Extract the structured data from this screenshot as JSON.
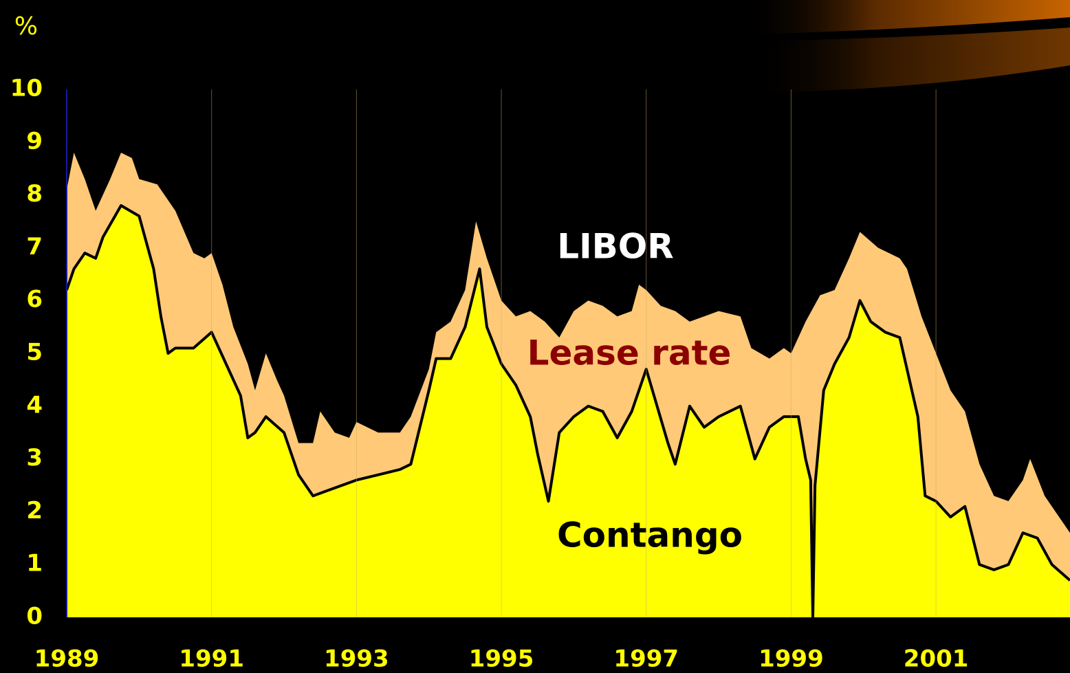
{
  "chart_data": {
    "type": "area",
    "y_unit_label": "%",
    "xlim": [
      1989,
      2002.85
    ],
    "xticks": [
      1989,
      1991,
      1993,
      1995,
      1997,
      1999,
      2001
    ],
    "ylim": [
      0,
      10
    ],
    "yticks": [
      0,
      1,
      2,
      3,
      4,
      5,
      6,
      7,
      8,
      9,
      10
    ],
    "grid": "x",
    "series": [
      {
        "name": "LIBOR",
        "color": "#ffc978",
        "label_color": "#ffffff",
        "x": [
          1989.0,
          1989.1,
          1989.25,
          1989.4,
          1989.6,
          1989.75,
          1989.9,
          1990.0,
          1990.25,
          1990.5,
          1990.75,
          1990.9,
          1991.0,
          1991.15,
          1991.3,
          1991.5,
          1991.6,
          1991.75,
          1991.9,
          1992.0,
          1992.2,
          1992.4,
          1992.5,
          1992.7,
          1992.9,
          1993.0,
          1993.3,
          1993.6,
          1993.75,
          1994.0,
          1994.1,
          1994.3,
          1994.5,
          1994.65,
          1994.8,
          1995.0,
          1995.2,
          1995.4,
          1995.6,
          1995.8,
          1996.0,
          1996.2,
          1996.4,
          1996.6,
          1996.8,
          1996.9,
          1997.0,
          1997.2,
          1997.4,
          1997.6,
          1997.8,
          1998.0,
          1998.3,
          1998.45,
          1998.7,
          1998.9,
          1999.0,
          1999.2,
          1999.4,
          1999.6,
          1999.8,
          1999.95,
          2000.2,
          2000.5,
          2000.6,
          2000.8,
          2001.0,
          2001.2,
          2001.4,
          2001.6,
          2001.8,
          2002.0,
          2002.2,
          2002.3,
          2002.5,
          2002.7,
          2002.85
        ],
        "values": [
          8.1,
          8.8,
          8.3,
          7.7,
          8.3,
          8.8,
          8.7,
          8.3,
          8.2,
          7.7,
          6.9,
          6.8,
          6.9,
          6.3,
          5.5,
          4.8,
          4.3,
          5.0,
          4.5,
          4.2,
          3.3,
          3.3,
          3.9,
          3.5,
          3.4,
          3.7,
          3.5,
          3.5,
          3.8,
          4.7,
          5.4,
          5.6,
          6.2,
          7.5,
          6.8,
          6.0,
          5.7,
          5.8,
          5.6,
          5.3,
          5.8,
          6.0,
          5.9,
          5.7,
          5.8,
          6.3,
          6.2,
          5.9,
          5.8,
          5.6,
          5.7,
          5.8,
          5.7,
          5.1,
          4.9,
          5.1,
          5.0,
          5.6,
          6.1,
          6.2,
          6.8,
          7.3,
          7.0,
          6.8,
          6.6,
          5.7,
          5.0,
          4.3,
          3.9,
          2.9,
          2.3,
          2.2,
          2.6,
          3.0,
          2.3,
          1.9,
          1.6
        ]
      },
      {
        "name": "Contango",
        "color": "#ffff00",
        "line_color": "#000000",
        "label_color": "#000000",
        "x": [
          1989.0,
          1989.1,
          1989.25,
          1989.4,
          1989.5,
          1989.75,
          1990.0,
          1990.2,
          1990.3,
          1990.4,
          1990.5,
          1990.75,
          1991.0,
          1991.2,
          1991.4,
          1991.5,
          1991.6,
          1991.75,
          1992.0,
          1992.2,
          1992.4,
          1992.6,
          1992.8,
          1993.0,
          1993.3,
          1993.6,
          1993.75,
          1994.0,
          1994.1,
          1994.3,
          1994.5,
          1994.7,
          1994.8,
          1995.0,
          1995.2,
          1995.4,
          1995.5,
          1995.65,
          1995.8,
          1996.0,
          1996.2,
          1996.4,
          1996.6,
          1996.8,
          1997.0,
          1997.15,
          1997.3,
          1997.4,
          1997.6,
          1997.8,
          1998.0,
          1998.3,
          1998.5,
          1998.7,
          1998.9,
          1999.1,
          1999.2,
          1999.27,
          1999.3,
          1999.33,
          1999.45,
          1999.6,
          1999.8,
          1999.95,
          2000.1,
          2000.3,
          2000.5,
          2000.6,
          2000.75,
          2000.85,
          2001.0,
          2001.2,
          2001.4,
          2001.6,
          2001.8,
          2002.0,
          2002.2,
          2002.4,
          2002.6,
          2002.85
        ],
        "values": [
          6.2,
          6.6,
          6.9,
          6.8,
          7.2,
          7.8,
          7.6,
          6.6,
          5.7,
          5.0,
          5.1,
          5.1,
          5.4,
          4.8,
          4.2,
          3.4,
          3.5,
          3.8,
          3.5,
          2.7,
          2.3,
          2.4,
          2.5,
          2.6,
          2.7,
          2.8,
          2.9,
          4.3,
          4.9,
          4.9,
          5.5,
          6.6,
          5.5,
          4.8,
          4.4,
          3.8,
          3.1,
          2.2,
          3.5,
          3.8,
          4.0,
          3.9,
          3.4,
          3.9,
          4.7,
          4.0,
          3.3,
          2.9,
          4.0,
          3.6,
          3.8,
          4.0,
          3.0,
          3.6,
          3.8,
          3.8,
          3.0,
          2.6,
          0,
          2.5,
          4.3,
          4.8,
          5.3,
          6.0,
          5.6,
          5.4,
          5.3,
          4.7,
          3.8,
          2.3,
          2.2,
          1.9,
          2.1,
          1.0,
          0.9,
          1.0,
          1.6,
          1.5,
          1.0,
          0.7
        ]
      }
    ],
    "annotations": [
      {
        "text": "Lease rate",
        "color": "#8b0000"
      }
    ]
  }
}
